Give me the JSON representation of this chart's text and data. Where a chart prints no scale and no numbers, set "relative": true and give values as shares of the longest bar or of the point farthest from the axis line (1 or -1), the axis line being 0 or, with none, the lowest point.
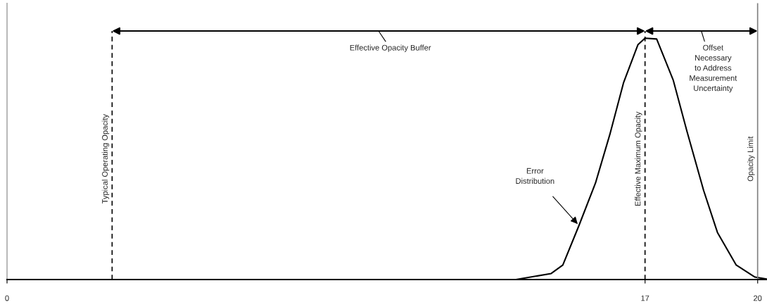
{
  "chart_data": {
    "type": "line",
    "relative": true,
    "x": [
      13.56,
      14.5,
      14.81,
      15.24,
      15.68,
      16.06,
      16.43,
      16.81,
      17.0,
      17.31,
      17.75,
      18.12,
      18.56,
      18.93,
      19.43,
      19.93,
      20.24
    ],
    "series": [
      {
        "color": "#000000",
        "values": [
          0,
          0.025,
          0.06,
          0.224,
          0.4,
          0.6,
          0.817,
          0.973,
          1.0,
          0.997,
          0.827,
          0.613,
          0.37,
          0.195,
          0.06,
          0.01,
          0.002
        ]
      }
    ],
    "xlim": [
      0,
      20.25
    ],
    "xticks": [
      0,
      17,
      20
    ],
    "ref_lines": [
      {
        "axis": "x",
        "value": 2.8,
        "label": "Typical Operating Opacity",
        "color": "#000000",
        "line_style": "dashed"
      },
      {
        "axis": "x",
        "value": 17,
        "label": "Effective Maximum Opacity",
        "color": "#000000",
        "line_style": "dashed"
      },
      {
        "axis": "x",
        "value": 20,
        "label": "Opacity Limit",
        "color": "#808080",
        "line_style": "solid"
      }
    ],
    "annotations": [
      "Effective Opacity Buffer",
      "Offset\nNecessary\nto Address\nMeasurement\nUncertainty",
      "Error\nDistribution"
    ],
    "grid": false,
    "legend": false,
    "marker": "none",
    "line_style": "solid"
  }
}
